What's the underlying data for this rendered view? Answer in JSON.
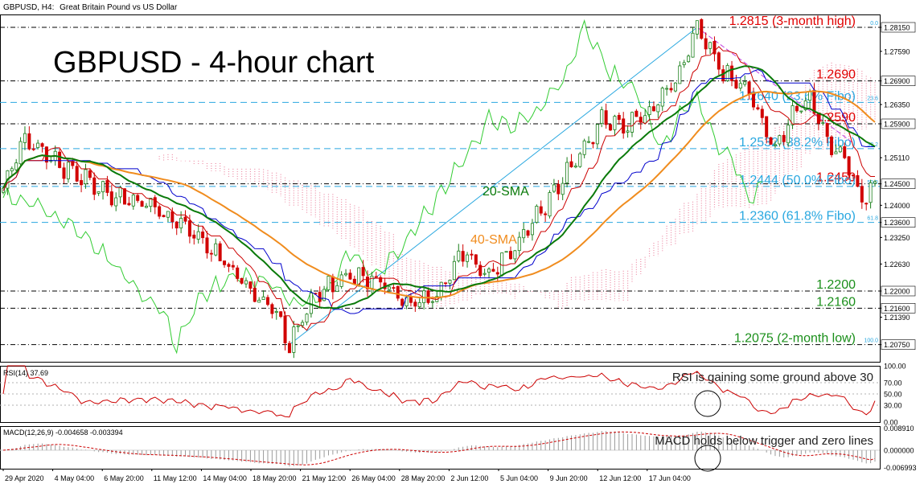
{
  "header": {
    "symbol": "GBPUSD, H4:",
    "description": "Great Britain Pound vs US Dollar"
  },
  "big_title": "GBPUSD - 4-hour chart",
  "colors": {
    "bull": "#1a7f1a",
    "bear": "#d10000",
    "sma20": "#0a7a0a",
    "sma40": "#f08c1e",
    "tenkan": "#cc0000",
    "kijun": "#0000cc",
    "chikou": "#33cc33",
    "cloud": "#e86b8c",
    "fibo": "#2aa8e0",
    "level_red": "#e00000",
    "level_green": "#1a8f1a",
    "rsi": "#cc0000",
    "macd_hist": "#9a9a9a",
    "macd_signal": "#cc0000"
  },
  "chart_data": [
    {
      "type": "candlestick",
      "name_label": "main",
      "ylim": [
        1.2035,
        1.2845
      ],
      "y_ticks": [
        "1.28150",
        "1.27590",
        "1.26900",
        "1.26350",
        "1.25900",
        "1.25110",
        "1.24500",
        "1.24000",
        "1.23600",
        "1.23250",
        "1.22630",
        "1.22000",
        "1.21600",
        "1.21390",
        "1.20750"
      ],
      "x_labels": [
        "29 Apr 2020",
        "4 May 04:00",
        "6 May 20:00",
        "11 May 12:00",
        "14 May 04:00",
        "18 May 20:00",
        "21 May 12:00",
        "26 May 04:00",
        "28 May 20:00",
        "2 Jun 12:00",
        "5 Jun 04:00",
        "9 Jun 20:00",
        "12 Jun 12:00",
        "17 Jun 04:00"
      ],
      "price_path": [
        [
          0,
          1.244
        ],
        [
          5,
          1.256
        ],
        [
          14,
          1.249
        ],
        [
          24,
          1.243
        ],
        [
          34,
          1.24
        ],
        [
          42,
          1.235
        ],
        [
          50,
          1.228
        ],
        [
          56,
          1.221
        ],
        [
          62,
          1.216
        ],
        [
          66,
          1.2075
        ],
        [
          72,
          1.219
        ],
        [
          80,
          1.224
        ],
        [
          88,
          1.222
        ],
        [
          94,
          1.217
        ],
        [
          100,
          1.219
        ],
        [
          106,
          1.229
        ],
        [
          112,
          1.224
        ],
        [
          120,
          1.233
        ],
        [
          126,
          1.241
        ],
        [
          132,
          1.251
        ],
        [
          138,
          1.26
        ],
        [
          144,
          1.258
        ],
        [
          150,
          1.263
        ],
        [
          156,
          1.271
        ],
        [
          160,
          1.2815
        ],
        [
          166,
          1.271
        ],
        [
          172,
          1.266
        ],
        [
          178,
          1.252
        ],
        [
          182,
          1.262
        ],
        [
          186,
          1.265
        ],
        [
          190,
          1.255
        ],
        [
          194,
          1.251
        ],
        [
          198,
          1.241
        ],
        [
          201,
          1.2444
        ]
      ],
      "levels": [
        {
          "label": "1.2815 (3-month high)",
          "value": 1.2815,
          "kind": "red",
          "tag": "0.0"
        },
        {
          "label": "1.2690",
          "value": 1.269,
          "kind": "red"
        },
        {
          "label": "1.2640 (23.6% Fibo)",
          "value": 1.264,
          "kind": "fibo",
          "tag": "23.6"
        },
        {
          "label": "1.2590",
          "value": 1.259,
          "kind": "red"
        },
        {
          "label": "1.2532 (38.2% Fibo)",
          "value": 1.2532,
          "kind": "fibo",
          "tag": "38.2"
        },
        {
          "label": "1.2450",
          "value": 1.245,
          "kind": "red"
        },
        {
          "label": "1.2444 (50.0% Fibo)",
          "value": 1.2444,
          "kind": "fibo",
          "tag": "50.0"
        },
        {
          "label": "1.2360 (61.8% Fibo)",
          "value": 1.236,
          "kind": "fibo",
          "tag": "61.8"
        },
        {
          "label": "1.2200",
          "value": 1.22,
          "kind": "green"
        },
        {
          "label": "1.2160",
          "value": 1.216,
          "kind": "green"
        },
        {
          "label": "1.2075 (2-month low)",
          "value": 1.2075,
          "kind": "green",
          "tag": "100.0"
        }
      ],
      "annotations": [
        "20-SMA",
        "40-SMA"
      ]
    },
    {
      "type": "line",
      "header": "RSI(14) 37.69",
      "ylim": [
        0,
        100
      ],
      "y_ticks": [
        "100.00",
        "70.00",
        "50.00",
        "30.00",
        "0.00"
      ],
      "dotted_levels": [
        70,
        50,
        30
      ],
      "annotation": "RSI is gaining some ground above 30"
    },
    {
      "type": "bar",
      "header": "MACD(12,26,9) -0.004658 -0.003394",
      "ylim": [
        -0.0075,
        0.0098
      ],
      "y_ticks": [
        "0.008910",
        "0.000000",
        "-0.006993"
      ],
      "annotation": "MACD holds below trigger and zero lines"
    }
  ]
}
